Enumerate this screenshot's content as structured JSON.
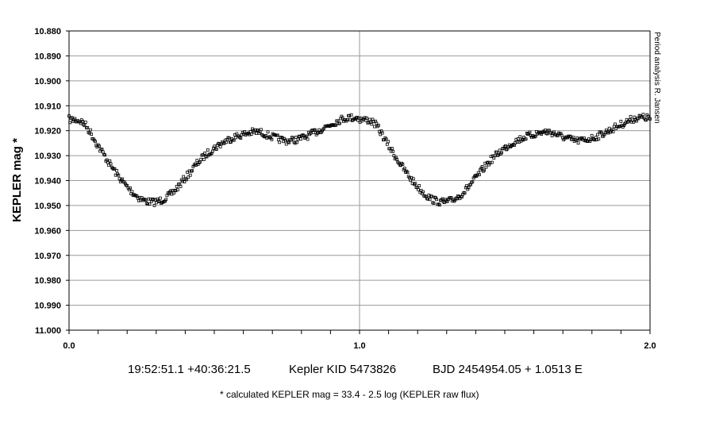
{
  "chart_data": {
    "type": "scatter",
    "ylabel": "KEPLER mag *",
    "xlabel": "",
    "xlim": [
      0.0,
      2.0
    ],
    "ylim": [
      10.88,
      11.0
    ],
    "y_inverted": true,
    "grid": "horizontal lines at every y tick, vertical line at x = 1.0",
    "x_ticks": [
      "0.0",
      "1.0",
      "2.0"
    ],
    "y_ticks": [
      "10.880",
      "10.890",
      "10.900",
      "10.910",
      "10.920",
      "10.930",
      "10.940",
      "10.950",
      "10.960",
      "10.970",
      "10.980",
      "10.990",
      "11.000"
    ],
    "x_minor_step": 0.1,
    "series": [
      {
        "marker": "dense points (band approx. 0.003 mag thick)",
        "color": "#000000",
        "light_curve_phase": [
          0.0,
          0.05,
          0.1,
          0.15,
          0.2,
          0.25,
          0.3,
          0.35,
          0.4,
          0.45,
          0.5,
          0.55,
          0.6,
          0.65,
          0.7,
          0.75,
          0.8,
          0.85,
          0.9,
          0.95,
          1.0
        ],
        "light_curve_mag": [
          10.9155,
          10.917,
          10.926,
          10.935,
          10.9425,
          10.9475,
          10.9485,
          10.9455,
          10.939,
          10.932,
          10.927,
          10.9235,
          10.9215,
          10.9205,
          10.9225,
          10.924,
          10.923,
          10.9205,
          10.9175,
          10.915,
          10.9148
        ],
        "point_count": 600,
        "scatter_mag": 0.0028
      }
    ],
    "annotations": {
      "coordinates": "19:52:51.1 +40:36:21.5",
      "star_id": "Kepler KID 5473826",
      "ephemeris": "BJD 2454954.05 + 1.0513 E",
      "footnote": "* calculated KEPLER mag = 33.4 - 2.5 log (KEPLER raw flux)",
      "credit": "Period analysis  R. Jansen"
    }
  }
}
